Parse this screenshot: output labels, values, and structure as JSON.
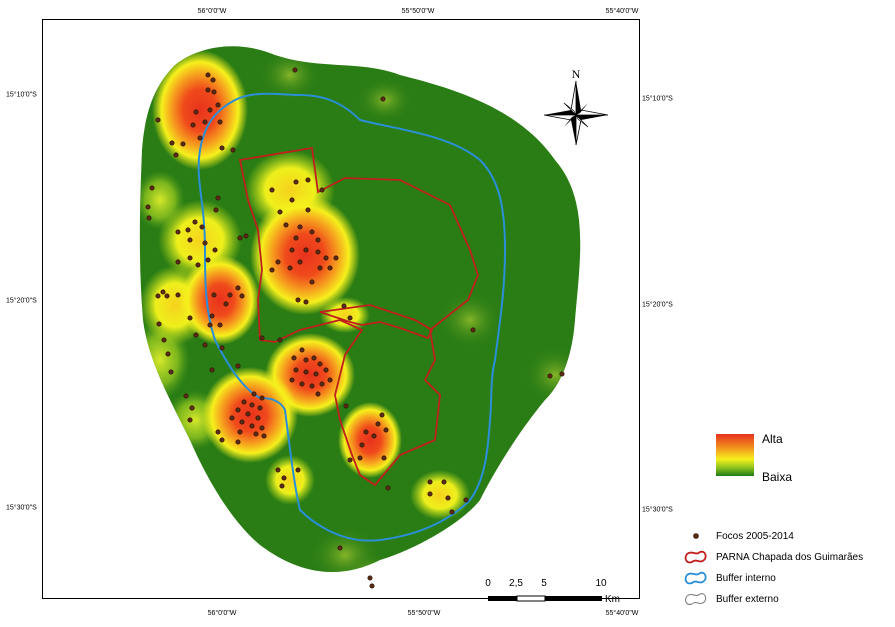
{
  "map": {
    "coords": {
      "top": [
        "56°0'0\"W",
        "55°50'0\"W",
        "55°40'0\"W"
      ],
      "bottom": [
        "56°0'0\"W",
        "55°50'0\"W",
        "55°40'0\"W"
      ],
      "left": [
        "15°10'0\"S",
        "15°20'0\"S",
        "15°30'0\"S"
      ],
      "right": [
        "15°10'0\"S",
        "15°20'0\"S",
        "15°30'0\"S"
      ]
    },
    "north_label": "N",
    "scale_bar": {
      "ticks": [
        "0",
        "2,5",
        "5",
        "10"
      ],
      "unit": "Km"
    },
    "colors": {
      "high": "#e8321d",
      "mid": "#f6f01c",
      "low": "#1e7a18",
      "park_boundary": "#c0201c",
      "buffer_internal": "#2a8fd6",
      "fire_point": "#5a2a14"
    }
  },
  "legend": {
    "ramp_high": "Alta",
    "ramp_low": "Baixa",
    "items": [
      {
        "label": "Focos 2005-2014",
        "icon": "fire-point-icon"
      },
      {
        "label": "PARNA Chapada dos Guimarães",
        "icon": "park-boundary-icon"
      },
      {
        "label": "Buffer interno",
        "icon": "internal-buffer-icon"
      },
      {
        "label": "Buffer externo",
        "icon": "external-buffer-icon"
      }
    ]
  }
}
